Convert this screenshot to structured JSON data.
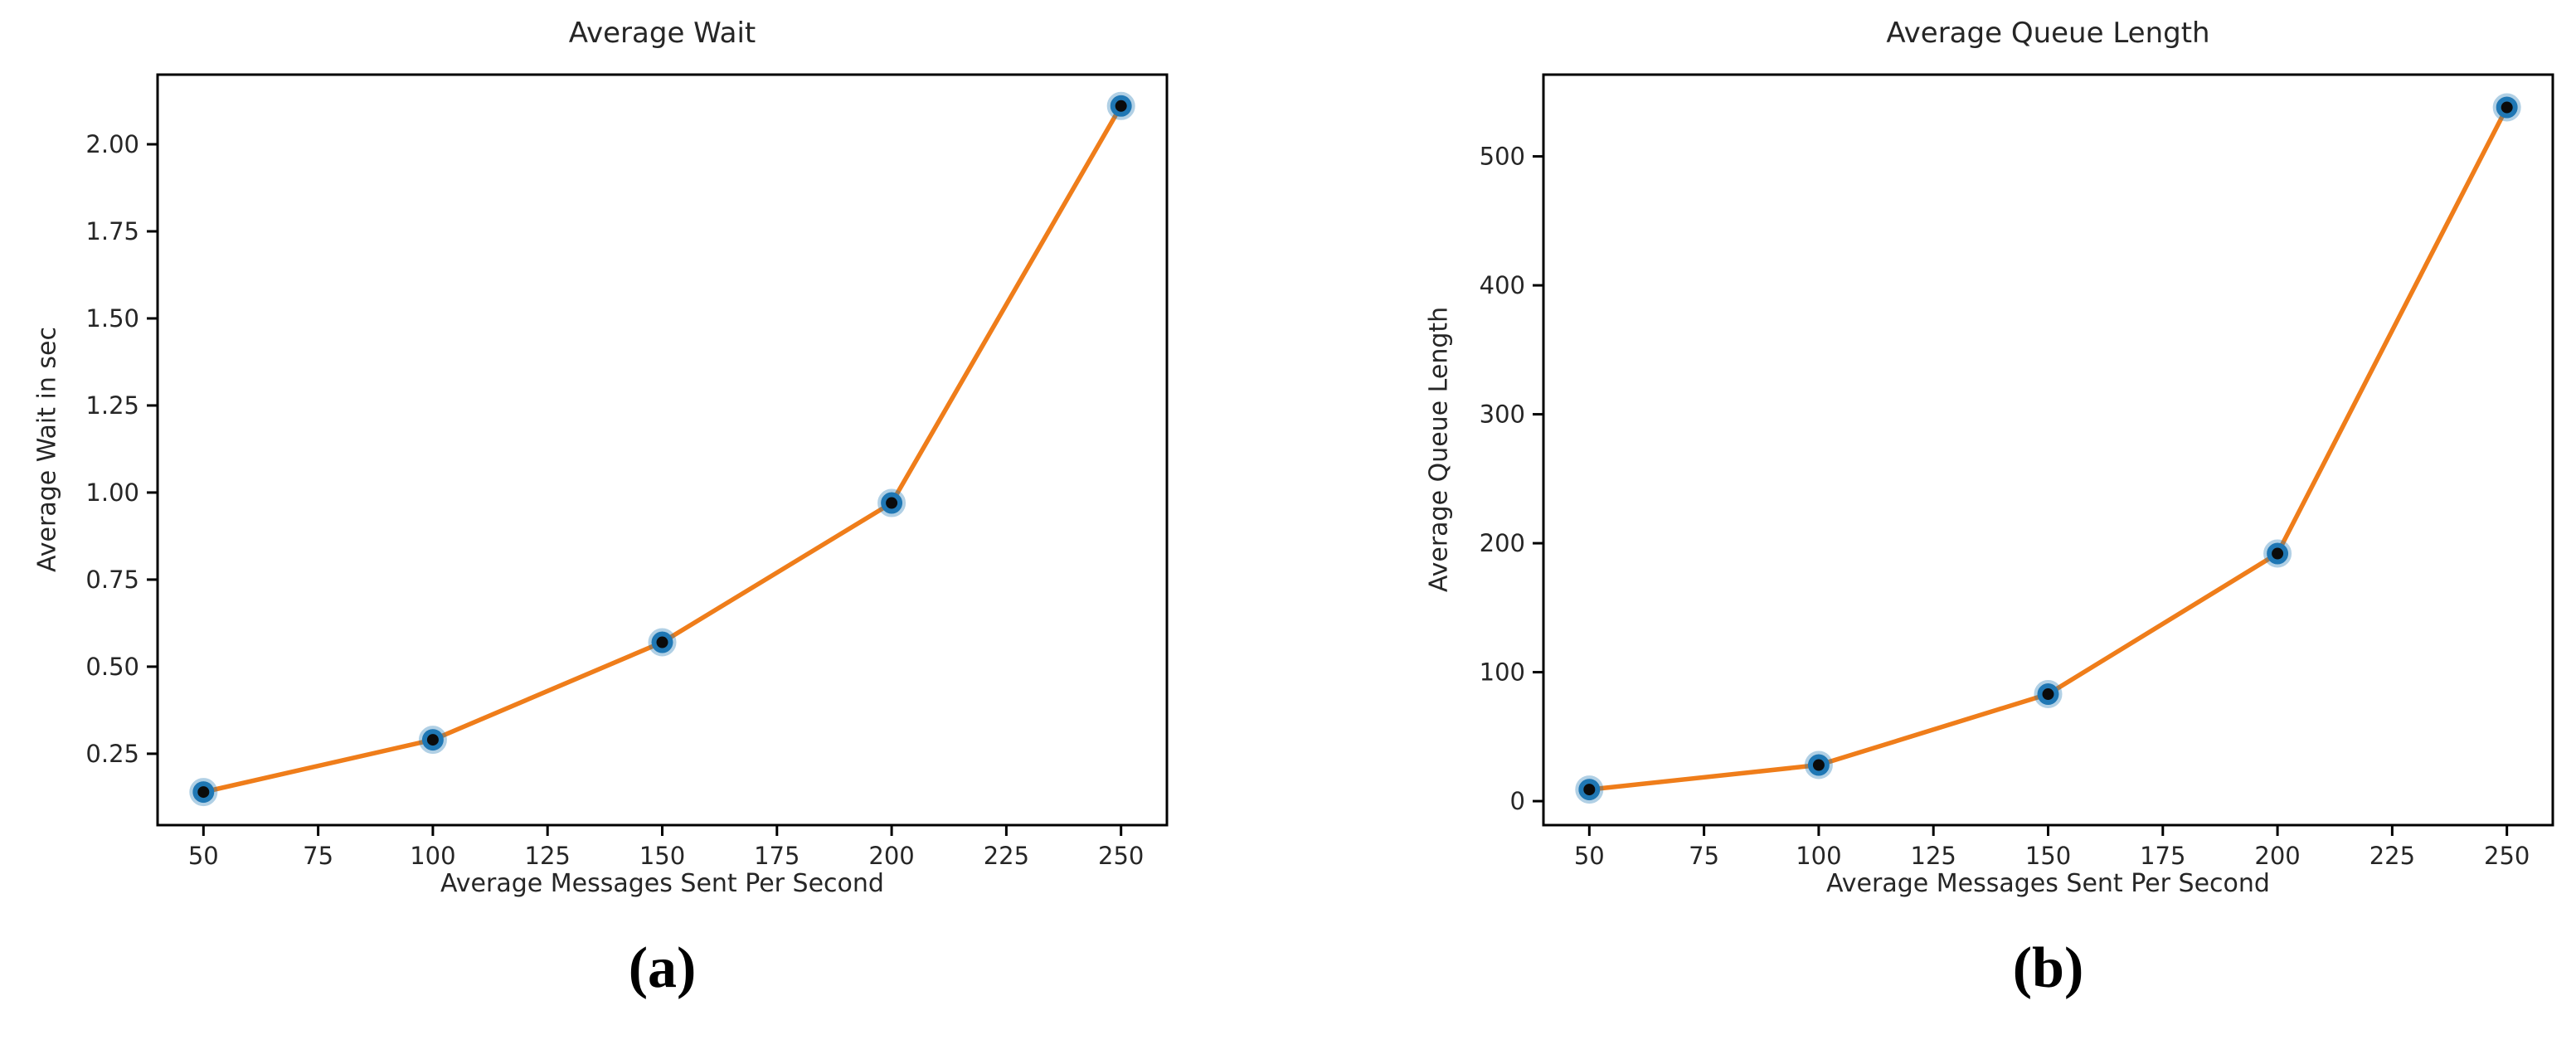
{
  "figure": {
    "caption_a": "(a)",
    "caption_b": "(b)"
  },
  "chart_data": [
    {
      "id": "average-wait",
      "type": "line",
      "title": "Average Wait",
      "xlabel": "Average Messages Sent Per Second",
      "ylabel": "Average Wait in sec",
      "x": [
        50,
        100,
        150,
        200,
        250
      ],
      "y": [
        0.14,
        0.29,
        0.57,
        0.97,
        2.11
      ],
      "xlim": [
        40,
        260
      ],
      "ylim": [
        0.045,
        2.2
      ],
      "xticks": {
        "values": [
          50,
          75,
          100,
          125,
          150,
          175,
          200,
          225,
          250
        ],
        "labels": [
          "50",
          "75",
          "100",
          "125",
          "150",
          "175",
          "200",
          "225",
          "250"
        ]
      },
      "yticks": {
        "values": [
          0.25,
          0.5,
          0.75,
          1.0,
          1.25,
          1.5,
          1.75,
          2.0
        ],
        "labels": [
          "0.25",
          "0.50",
          "0.75",
          "1.00",
          "1.25",
          "1.50",
          "1.75",
          "2.00"
        ]
      },
      "grid": false,
      "legend_position": "none",
      "line_color": "#ef7d1a",
      "marker_fill": "#0b0b0b",
      "marker_edge": "#1f77b4",
      "axis_color": "#000000"
    },
    {
      "id": "average-queue-length",
      "type": "line",
      "title": "Average Queue Length",
      "xlabel": "Average Messages Sent Per Second",
      "ylabel": "Average Queue Length",
      "x": [
        50,
        100,
        150,
        200,
        250
      ],
      "y": [
        9,
        28,
        83,
        192,
        538
      ],
      "xlim": [
        40,
        260
      ],
      "ylim": [
        -18.6,
        563.4
      ],
      "xticks": {
        "values": [
          50,
          75,
          100,
          125,
          150,
          175,
          200,
          225,
          250
        ],
        "labels": [
          "50",
          "75",
          "100",
          "125",
          "150",
          "175",
          "200",
          "225",
          "250"
        ]
      },
      "yticks": {
        "values": [
          0,
          100,
          200,
          300,
          400,
          500
        ],
        "labels": [
          "0",
          "100",
          "200",
          "300",
          "400",
          "500"
        ]
      },
      "grid": false,
      "legend_position": "none",
      "line_color": "#ef7d1a",
      "marker_fill": "#0b0b0b",
      "marker_edge": "#1f77b4",
      "axis_color": "#000000"
    }
  ]
}
